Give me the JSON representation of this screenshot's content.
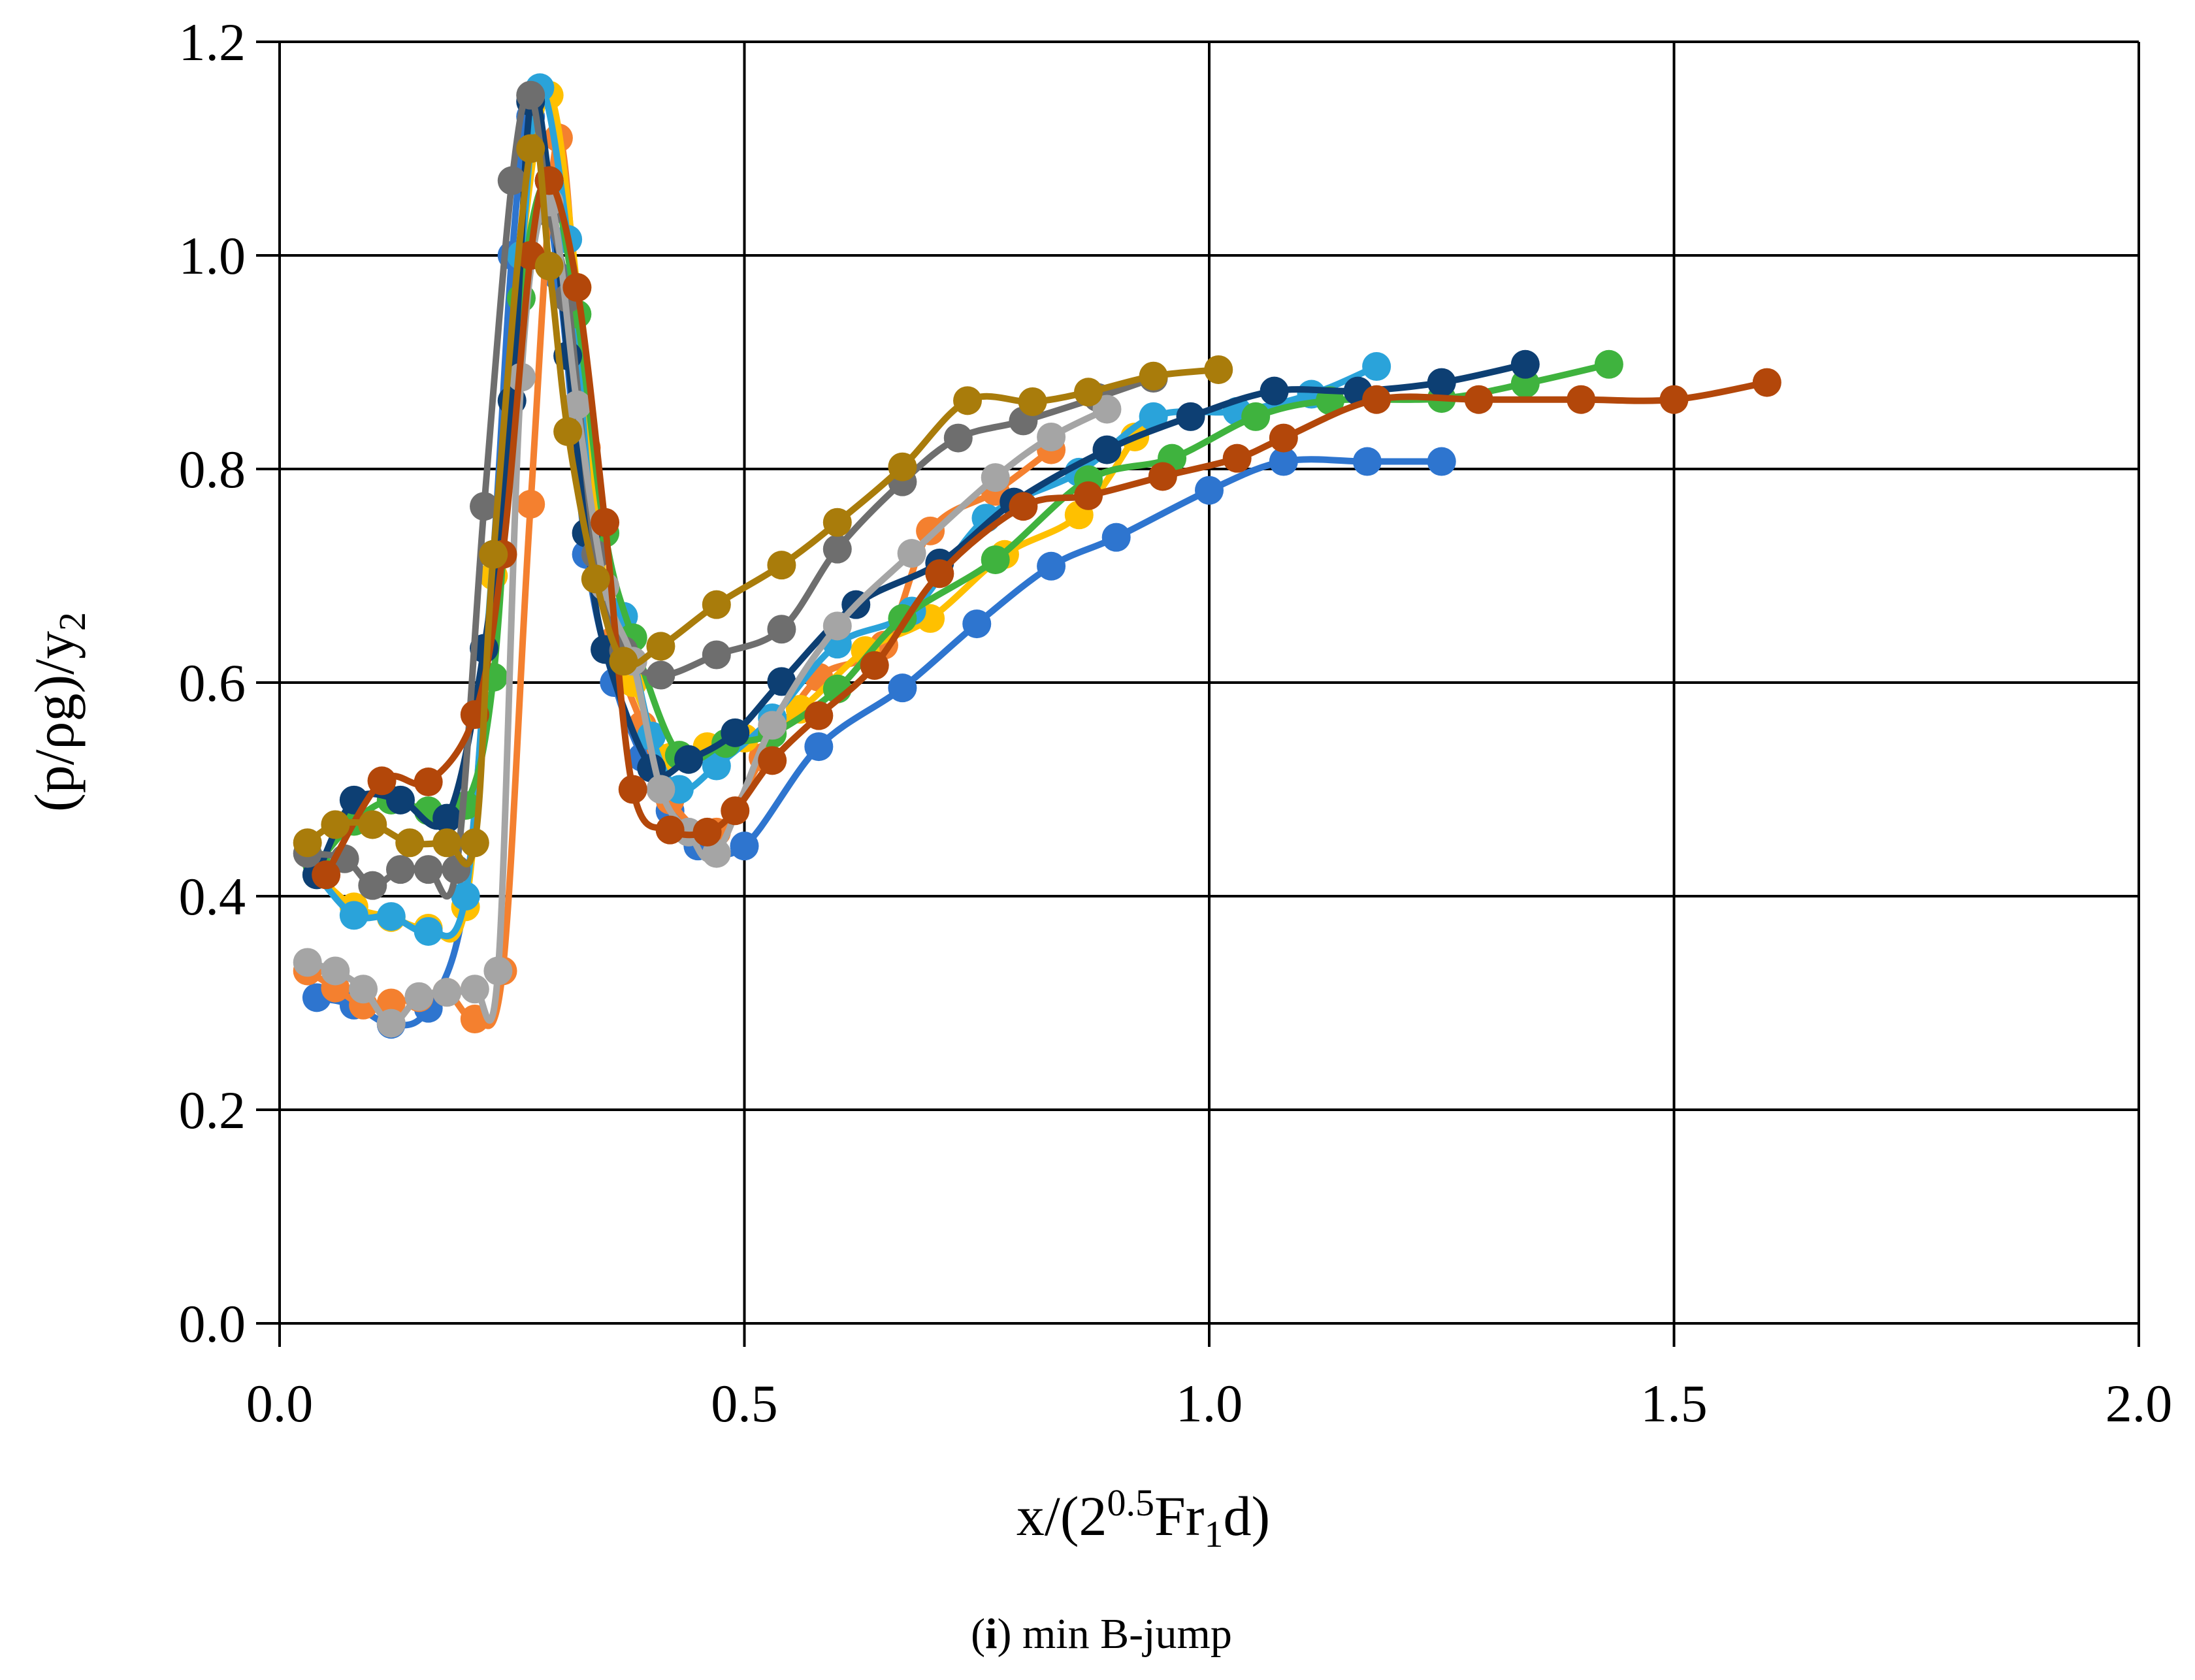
{
  "chart_data": {
    "type": "line",
    "subtitle_label": "i",
    "subtitle_text": "min B-jump",
    "xlabel": {
      "prefix": "x/(2",
      "sup": "0.5",
      "mid": "Fr",
      "sub": "1",
      "suffix": "d)"
    },
    "ylabel": {
      "prefix": "(p/ρg)/y",
      "sub": "2"
    },
    "xlim": [
      0,
      2.0
    ],
    "ylim": [
      0,
      1.2
    ],
    "x_ticks": [
      0.0,
      0.5,
      1.0,
      1.5,
      2.0
    ],
    "y_ticks": [
      0.0,
      0.2,
      0.4,
      0.6,
      0.8,
      1.0,
      1.2
    ],
    "x_tick_labels": [
      "0.0",
      "0.5",
      "1.0",
      "1.5",
      "2.0"
    ],
    "y_tick_labels": [
      "0.0",
      "0.2",
      "0.4",
      "0.6",
      "0.8",
      "1.0",
      "1.2"
    ],
    "grid": true,
    "legend": "none",
    "series": [
      {
        "name": "series-1",
        "color": "#2E75CF",
        "x": [
          0.04,
          0.08,
          0.12,
          0.16,
          0.2,
          0.23,
          0.25,
          0.27,
          0.3,
          0.33,
          0.36,
          0.39,
          0.42,
          0.45,
          0.5,
          0.58,
          0.67,
          0.75,
          0.83,
          0.9,
          1.0,
          1.08,
          1.17,
          1.25
        ],
        "y": [
          0.305,
          0.298,
          0.28,
          0.295,
          0.4,
          0.72,
          1.0,
          1.13,
          0.98,
          0.72,
          0.6,
          0.53,
          0.48,
          0.447,
          0.447,
          0.54,
          0.595,
          0.655,
          0.709,
          0.736,
          0.78,
          0.807,
          0.807,
          0.807
        ]
      },
      {
        "name": "series-2",
        "color": "#F4802F",
        "x": [
          0.03,
          0.06,
          0.09,
          0.12,
          0.15,
          0.18,
          0.21,
          0.24,
          0.27,
          0.3,
          0.33,
          0.36,
          0.39,
          0.42,
          0.47,
          0.52,
          0.58,
          0.65,
          0.7,
          0.77,
          0.83
        ],
        "y": [
          0.33,
          0.314,
          0.298,
          0.3,
          0.305,
          0.31,
          0.285,
          0.33,
          0.767,
          1.11,
          0.82,
          0.64,
          0.56,
          0.49,
          0.46,
          0.53,
          0.605,
          0.635,
          0.742,
          0.779,
          0.818
        ]
      },
      {
        "name": "series-3",
        "color": "#FFC000",
        "x": [
          0.04,
          0.08,
          0.12,
          0.16,
          0.2,
          0.23,
          0.26,
          0.29,
          0.32,
          0.35,
          0.38,
          0.42,
          0.46,
          0.5,
          0.56,
          0.63,
          0.7,
          0.78,
          0.86,
          0.92
        ],
        "y": [
          0.42,
          0.39,
          0.38,
          0.37,
          0.39,
          0.7,
          1.0,
          1.15,
          0.97,
          0.69,
          0.6,
          0.53,
          0.54,
          0.548,
          0.575,
          0.63,
          0.66,
          0.72,
          0.757,
          0.83
        ]
      },
      {
        "name": "series-4",
        "color": "#2AA3DA",
        "x": [
          0.04,
          0.08,
          0.12,
          0.16,
          0.2,
          0.23,
          0.26,
          0.28,
          0.31,
          0.34,
          0.37,
          0.4,
          0.43,
          0.47,
          0.53,
          0.6,
          0.68,
          0.76,
          0.86,
          0.94,
          1.03,
          1.11,
          1.18
        ],
        "y": [
          0.42,
          0.382,
          0.381,
          0.367,
          0.4,
          0.72,
          1.0,
          1.157,
          1.015,
          0.72,
          0.662,
          0.55,
          0.5,
          0.522,
          0.567,
          0.636,
          0.667,
          0.754,
          0.797,
          0.849,
          0.854,
          0.87,
          0.896
        ]
      },
      {
        "name": "series-5",
        "color": "#3FB33E",
        "x": [
          0.04,
          0.08,
          0.12,
          0.16,
          0.2,
          0.23,
          0.26,
          0.29,
          0.32,
          0.35,
          0.38,
          0.43,
          0.48,
          0.53,
          0.6,
          0.67,
          0.77,
          0.87,
          0.96,
          1.05,
          1.13,
          1.25,
          1.34,
          1.43
        ],
        "y": [
          0.43,
          0.47,
          0.49,
          0.48,
          0.485,
          0.605,
          0.96,
          1.07,
          0.945,
          0.74,
          0.642,
          0.532,
          0.543,
          0.552,
          0.594,
          0.66,
          0.715,
          0.79,
          0.81,
          0.849,
          0.864,
          0.866,
          0.88,
          0.898
        ]
      },
      {
        "name": "series-6",
        "color": "#0D3F73",
        "x": [
          0.04,
          0.08,
          0.13,
          0.18,
          0.22,
          0.25,
          0.27,
          0.29,
          0.31,
          0.33,
          0.35,
          0.4,
          0.44,
          0.49,
          0.54,
          0.62,
          0.71,
          0.79,
          0.89,
          0.98,
          1.07,
          1.16,
          1.25,
          1.34
        ],
        "y": [
          0.42,
          0.49,
          0.49,
          0.473,
          0.632,
          0.864,
          1.144,
          1.07,
          0.906,
          0.74,
          0.631,
          0.52,
          0.528,
          0.553,
          0.601,
          0.673,
          0.712,
          0.769,
          0.818,
          0.849,
          0.873,
          0.873,
          0.881,
          0.898
        ]
      },
      {
        "name": "series-7",
        "color": "#6E6E6E",
        "x": [
          0.03,
          0.07,
          0.1,
          0.13,
          0.16,
          0.19,
          0.22,
          0.25,
          0.27,
          0.29,
          0.31,
          0.34,
          0.37,
          0.41,
          0.47,
          0.54,
          0.6,
          0.67,
          0.73,
          0.8,
          0.88,
          0.94
        ],
        "y": [
          0.44,
          0.435,
          0.41,
          0.425,
          0.425,
          0.425,
          0.765,
          1.07,
          1.15,
          1.04,
          0.96,
          0.72,
          0.63,
          0.607,
          0.626,
          0.65,
          0.725,
          0.788,
          0.829,
          0.845,
          0.867,
          0.885
        ]
      },
      {
        "name": "series-8",
        "color": "#A5A5A5",
        "x": [
          0.03,
          0.06,
          0.09,
          0.12,
          0.15,
          0.18,
          0.21,
          0.235,
          0.26,
          0.29,
          0.32,
          0.35,
          0.38,
          0.41,
          0.44,
          0.47,
          0.53,
          0.6,
          0.68,
          0.77,
          0.83,
          0.89
        ],
        "y": [
          0.338,
          0.33,
          0.313,
          0.281,
          0.306,
          0.31,
          0.313,
          0.33,
          0.886,
          1.05,
          0.86,
          0.69,
          0.62,
          0.5,
          0.46,
          0.44,
          0.56,
          0.653,
          0.721,
          0.792,
          0.83,
          0.856
        ]
      },
      {
        "name": "series-9",
        "color": "#B3470A",
        "x": [
          0.05,
          0.11,
          0.16,
          0.21,
          0.24,
          0.27,
          0.29,
          0.32,
          0.35,
          0.38,
          0.42,
          0.46,
          0.49,
          0.53,
          0.58,
          0.64,
          0.71,
          0.8,
          0.87,
          0.95,
          1.03,
          1.08,
          1.18,
          1.29,
          1.4,
          1.5,
          1.6
        ],
        "y": [
          0.42,
          0.508,
          0.507,
          0.57,
          0.72,
          1.0,
          1.07,
          0.97,
          0.75,
          0.5,
          0.462,
          0.46,
          0.48,
          0.527,
          0.569,
          0.616,
          0.702,
          0.765,
          0.775,
          0.793,
          0.81,
          0.829,
          0.865,
          0.865,
          0.865,
          0.865,
          0.881
        ]
      },
      {
        "name": "series-10",
        "color": "#A97C0B",
        "x": [
          0.03,
          0.06,
          0.1,
          0.14,
          0.18,
          0.21,
          0.23,
          0.27,
          0.29,
          0.31,
          0.34,
          0.37,
          0.41,
          0.47,
          0.54,
          0.6,
          0.67,
          0.74,
          0.81,
          0.87,
          0.94,
          1.01
        ],
        "y": [
          0.45,
          0.467,
          0.467,
          0.45,
          0.45,
          0.45,
          0.72,
          1.1,
          0.99,
          0.835,
          0.697,
          0.62,
          0.634,
          0.673,
          0.71,
          0.75,
          0.802,
          0.864,
          0.863,
          0.872,
          0.887,
          0.893
        ]
      }
    ]
  }
}
